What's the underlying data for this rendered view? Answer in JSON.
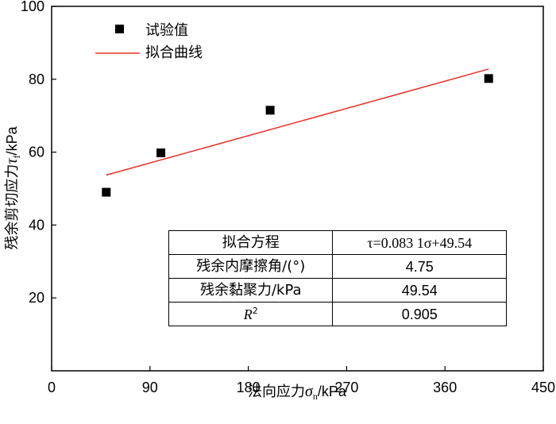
{
  "chart_data": {
    "type": "scatter",
    "xlabel_text": "法向应力",
    "xlabel_symbol": "σ",
    "xlabel_sub": "n",
    "xlabel_unit": "/kPa",
    "ylabel_text": "残余剪切应力",
    "ylabel_symbol": "τ",
    "ylabel_sub": "f",
    "ylabel_unit": "/kPa",
    "xlim": [
      0,
      450
    ],
    "ylim": [
      0,
      100
    ],
    "xticks": [
      0,
      90,
      180,
      270,
      360,
      450
    ],
    "yticks": [
      20,
      40,
      60,
      80,
      100
    ],
    "xtick_labels": [
      "0",
      "90",
      "180",
      "270",
      "360",
      "450"
    ],
    "ytick_labels": [
      "20",
      "40",
      "60",
      "80",
      "100"
    ],
    "series": [
      {
        "name": "试验值",
        "kind": "scatter",
        "marker": "square",
        "color": "#000000",
        "x": [
          50,
          100,
          200,
          400
        ],
        "y": [
          49,
          59.8,
          71.5,
          80.2
        ]
      },
      {
        "name": "拟合曲线",
        "kind": "line",
        "color": "#e8302a",
        "x": [
          50,
          400
        ],
        "y": [
          53.7,
          82.8
        ]
      }
    ],
    "legend_position": "top-left",
    "grid": false
  },
  "table": {
    "rows": [
      {
        "label": "拟合方程",
        "value": "τ=0.083 1σ+49.54"
      },
      {
        "label": "残余内摩擦角/(°)",
        "value": "4.75"
      },
      {
        "label": "残余黏聚力/kPa",
        "value": "49.54"
      },
      {
        "label_symbol": "R",
        "label_sup": "2",
        "value": "0.905"
      }
    ]
  }
}
